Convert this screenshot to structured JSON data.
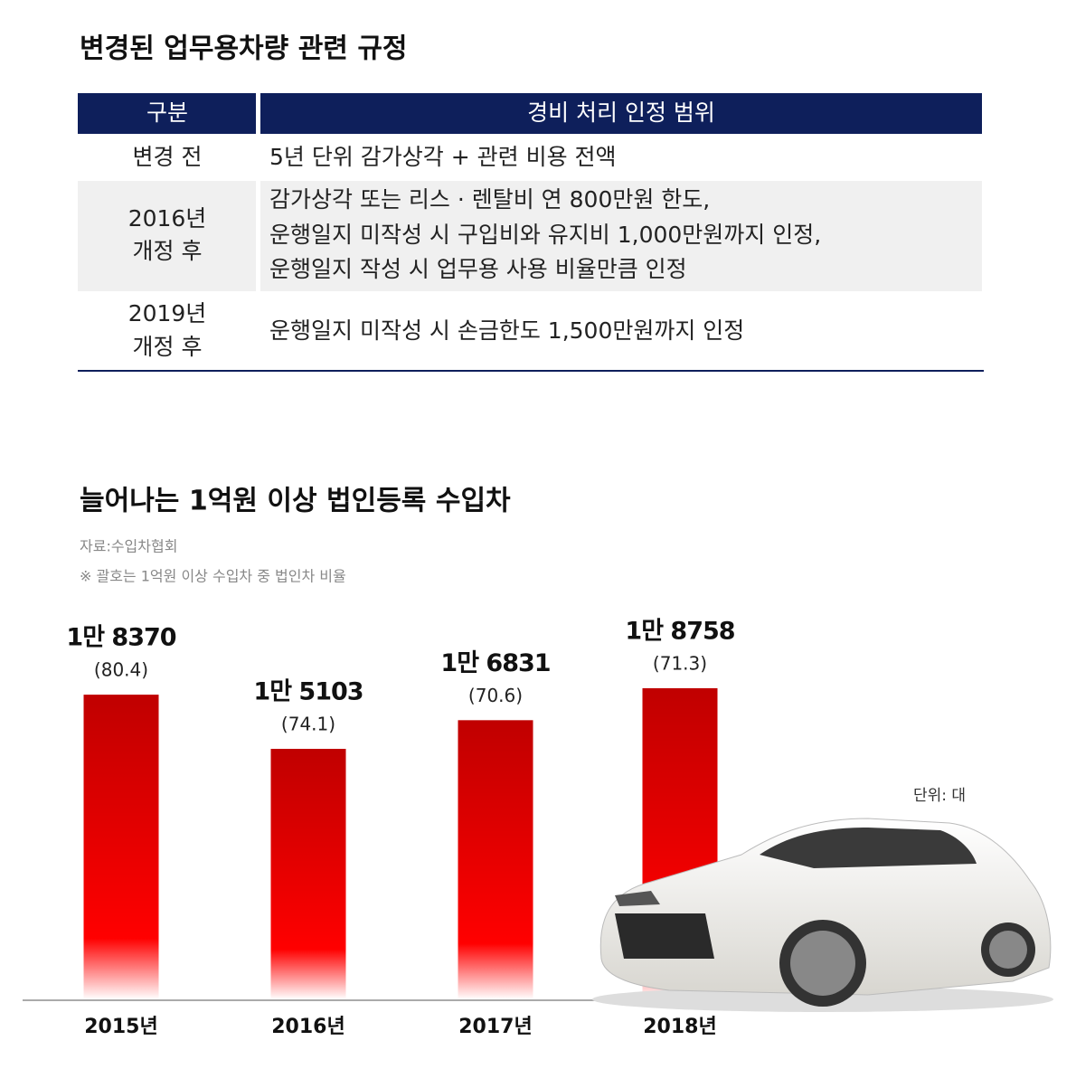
{
  "table": {
    "title": "변경된 업무용차량 관련 규정",
    "header": [
      "구분",
      "경비 처리 인정 범위"
    ],
    "rows": [
      [
        [
          "변경 전"
        ],
        [
          "5년 단위 감가상각 + 관련 비용 전액"
        ]
      ],
      [
        [
          "2016년",
          "개정 후"
        ],
        [
          "감가상각 또는 리스 · 렌탈비 연 800만원 한도,",
          "운행일지 미작성 시 구입비와 유지비 1,000만원까지 인정,",
          "운행일지 작성 시 업무용 사용 비율만큼 인정"
        ]
      ],
      [
        [
          "2019년",
          "개정 후"
        ],
        [
          "운행일지 미작성 시 손금한도 1,500만원까지 인정"
        ]
      ]
    ]
  },
  "chart_data": {
    "type": "bar",
    "title": "늘어나는 1억원 이상 법인등록 수입차",
    "source": "자료:수입차협회",
    "note": "※ 괄호는 1억원 이상 수입차 중 법인차 비율",
    "unit": "단위: 대",
    "categories": [
      "2015년",
      "2016년",
      "2017년",
      "2018년"
    ],
    "values": [
      18370,
      15103,
      16831,
      18758
    ],
    "value_labels": [
      "1만 8370",
      "1만 5103",
      "1만 6831",
      "1만 8758"
    ],
    "ratios": [
      80.4,
      74.1,
      70.6,
      71.3
    ],
    "ratio_labels": [
      "(80.4)",
      "(74.1)",
      "(70.6)",
      "(71.3)"
    ],
    "color": "#e00000"
  }
}
